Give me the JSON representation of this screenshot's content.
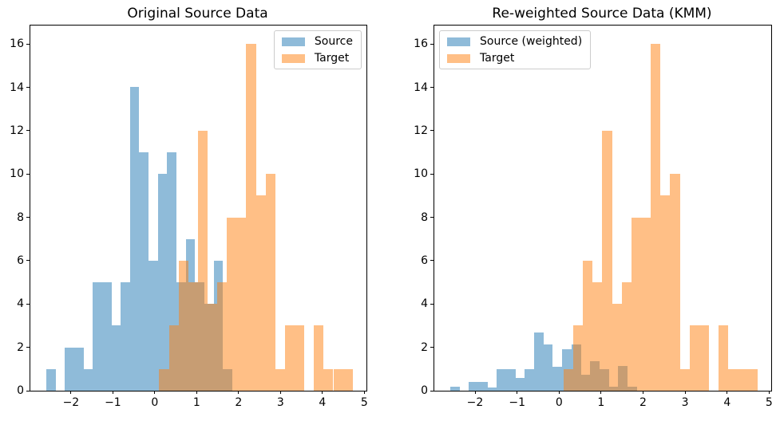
{
  "chart_data": {
    "type": "histogram",
    "figure_background": "#ffffff",
    "colors": {
      "source_fill_rgba": "rgba(31,119,180,0.5)",
      "target_fill_rgba": "rgba(255,127,14,0.5)",
      "source_flat_hex": "#8fbbd9",
      "target_flat_hex": "#ffbf87",
      "overlap_flat_hex": "#c79d74",
      "axis_color": "#000000",
      "legend_border": "#cccccc"
    },
    "xlim": [
      -2.97,
      5.05
    ],
    "ylim": [
      0,
      16.85
    ],
    "x_tick_values": [
      -2,
      -1,
      0,
      1,
      2,
      3,
      4,
      5
    ],
    "x_tick_labels": [
      "−2",
      "−1",
      "0",
      "1",
      "2",
      "3",
      "4",
      "5"
    ],
    "y_tick_values": [
      0,
      2,
      4,
      6,
      8,
      10,
      12,
      14,
      16
    ],
    "y_tick_labels": [
      "0",
      "2",
      "4",
      "6",
      "8",
      "10",
      "12",
      "14",
      "16"
    ],
    "grid": false,
    "subplots": [
      {
        "title": "Original Source Data",
        "legend_position": "top-right",
        "legend_items": [
          {
            "label": "Source",
            "series": "source"
          },
          {
            "label": "Target",
            "series": "target"
          }
        ],
        "series": [
          {
            "name": "Source",
            "role": "source",
            "bin_start": -2.59,
            "bin_width": 0.222,
            "counts": [
              1,
              0,
              2,
              2,
              1,
              5,
              5,
              3,
              5,
              14,
              11,
              6,
              10,
              11,
              5,
              7,
              5,
              4,
              6,
              1
            ]
          },
          {
            "name": "Target",
            "role": "target",
            "bin_start": 0.105,
            "bin_width": 0.2308,
            "counts": [
              1,
              3,
              6,
              5,
              12,
              4,
              5,
              8,
              8,
              16,
              9,
              10,
              1,
              3,
              3,
              0,
              3,
              1,
              1,
              1
            ]
          }
        ]
      },
      {
        "title": "Re-weighted Source Data (KMM)",
        "legend_position": "top-left",
        "legend_items": [
          {
            "label": "Source (weighted)",
            "series": "source"
          },
          {
            "label": "Target",
            "series": "target"
          }
        ],
        "series": [
          {
            "name": "Source (weighted)",
            "role": "source",
            "bin_start": -2.59,
            "bin_width": 0.222,
            "counts": [
              0.2,
              0,
              0.4,
              0.4,
              0.15,
              1.0,
              1.0,
              0.6,
              1.0,
              2.7,
              2.15,
              1.1,
              1.9,
              2.15,
              0.75,
              1.35,
              1.0,
              0.2,
              1.15,
              0.2
            ]
          },
          {
            "name": "Target",
            "role": "target",
            "bin_start": 0.105,
            "bin_width": 0.2308,
            "counts": [
              1,
              3,
              6,
              5,
              12,
              4,
              5,
              8,
              8,
              16,
              9,
              10,
              1,
              3,
              3,
              0,
              3,
              1,
              1,
              1
            ]
          }
        ]
      }
    ]
  }
}
